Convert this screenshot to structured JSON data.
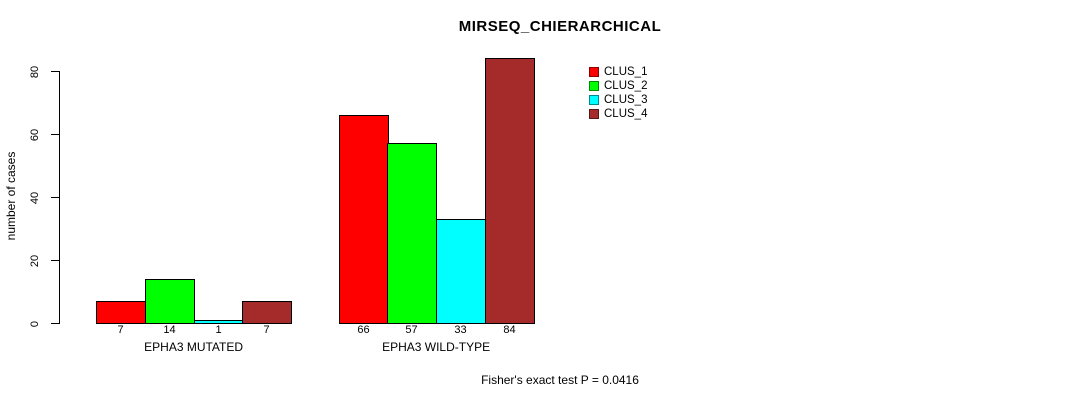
{
  "chart_data": {
    "type": "bar",
    "title": "MIRSEQ_CHIERARCHICAL",
    "ylabel": "number of cases",
    "xlabel": "",
    "categories": [
      "EPHA3 MUTATED",
      "EPHA3 WILD-TYPE"
    ],
    "series": [
      {
        "name": "CLUS_1",
        "color": "#FF0000",
        "values": [
          7,
          66
        ]
      },
      {
        "name": "CLUS_2",
        "color": "#00FF00",
        "values": [
          14,
          57
        ]
      },
      {
        "name": "CLUS_3",
        "color": "#00FFFF",
        "values": [
          1,
          33
        ]
      },
      {
        "name": "CLUS_4",
        "color": "#A52A2A",
        "values": [
          7,
          84
        ]
      }
    ],
    "bar_labels": [
      [
        "7",
        "14",
        "1",
        "7"
      ],
      [
        "66",
        "57",
        "33",
        "84"
      ]
    ],
    "ylim": [
      0,
      80
    ],
    "yticks": [
      "0",
      "20",
      "40",
      "60",
      "80"
    ],
    "grid": false,
    "legend_position": "top-right",
    "legend_entries": [
      "CLUS_1",
      "CLUS_2",
      "CLUS_3",
      "CLUS_4"
    ],
    "annotation": "Fisher's exact test P = 0.0416",
    "bar_border_color": "#000000",
    "axis_color": "#000000",
    "background_color": "#FFFFFF"
  }
}
